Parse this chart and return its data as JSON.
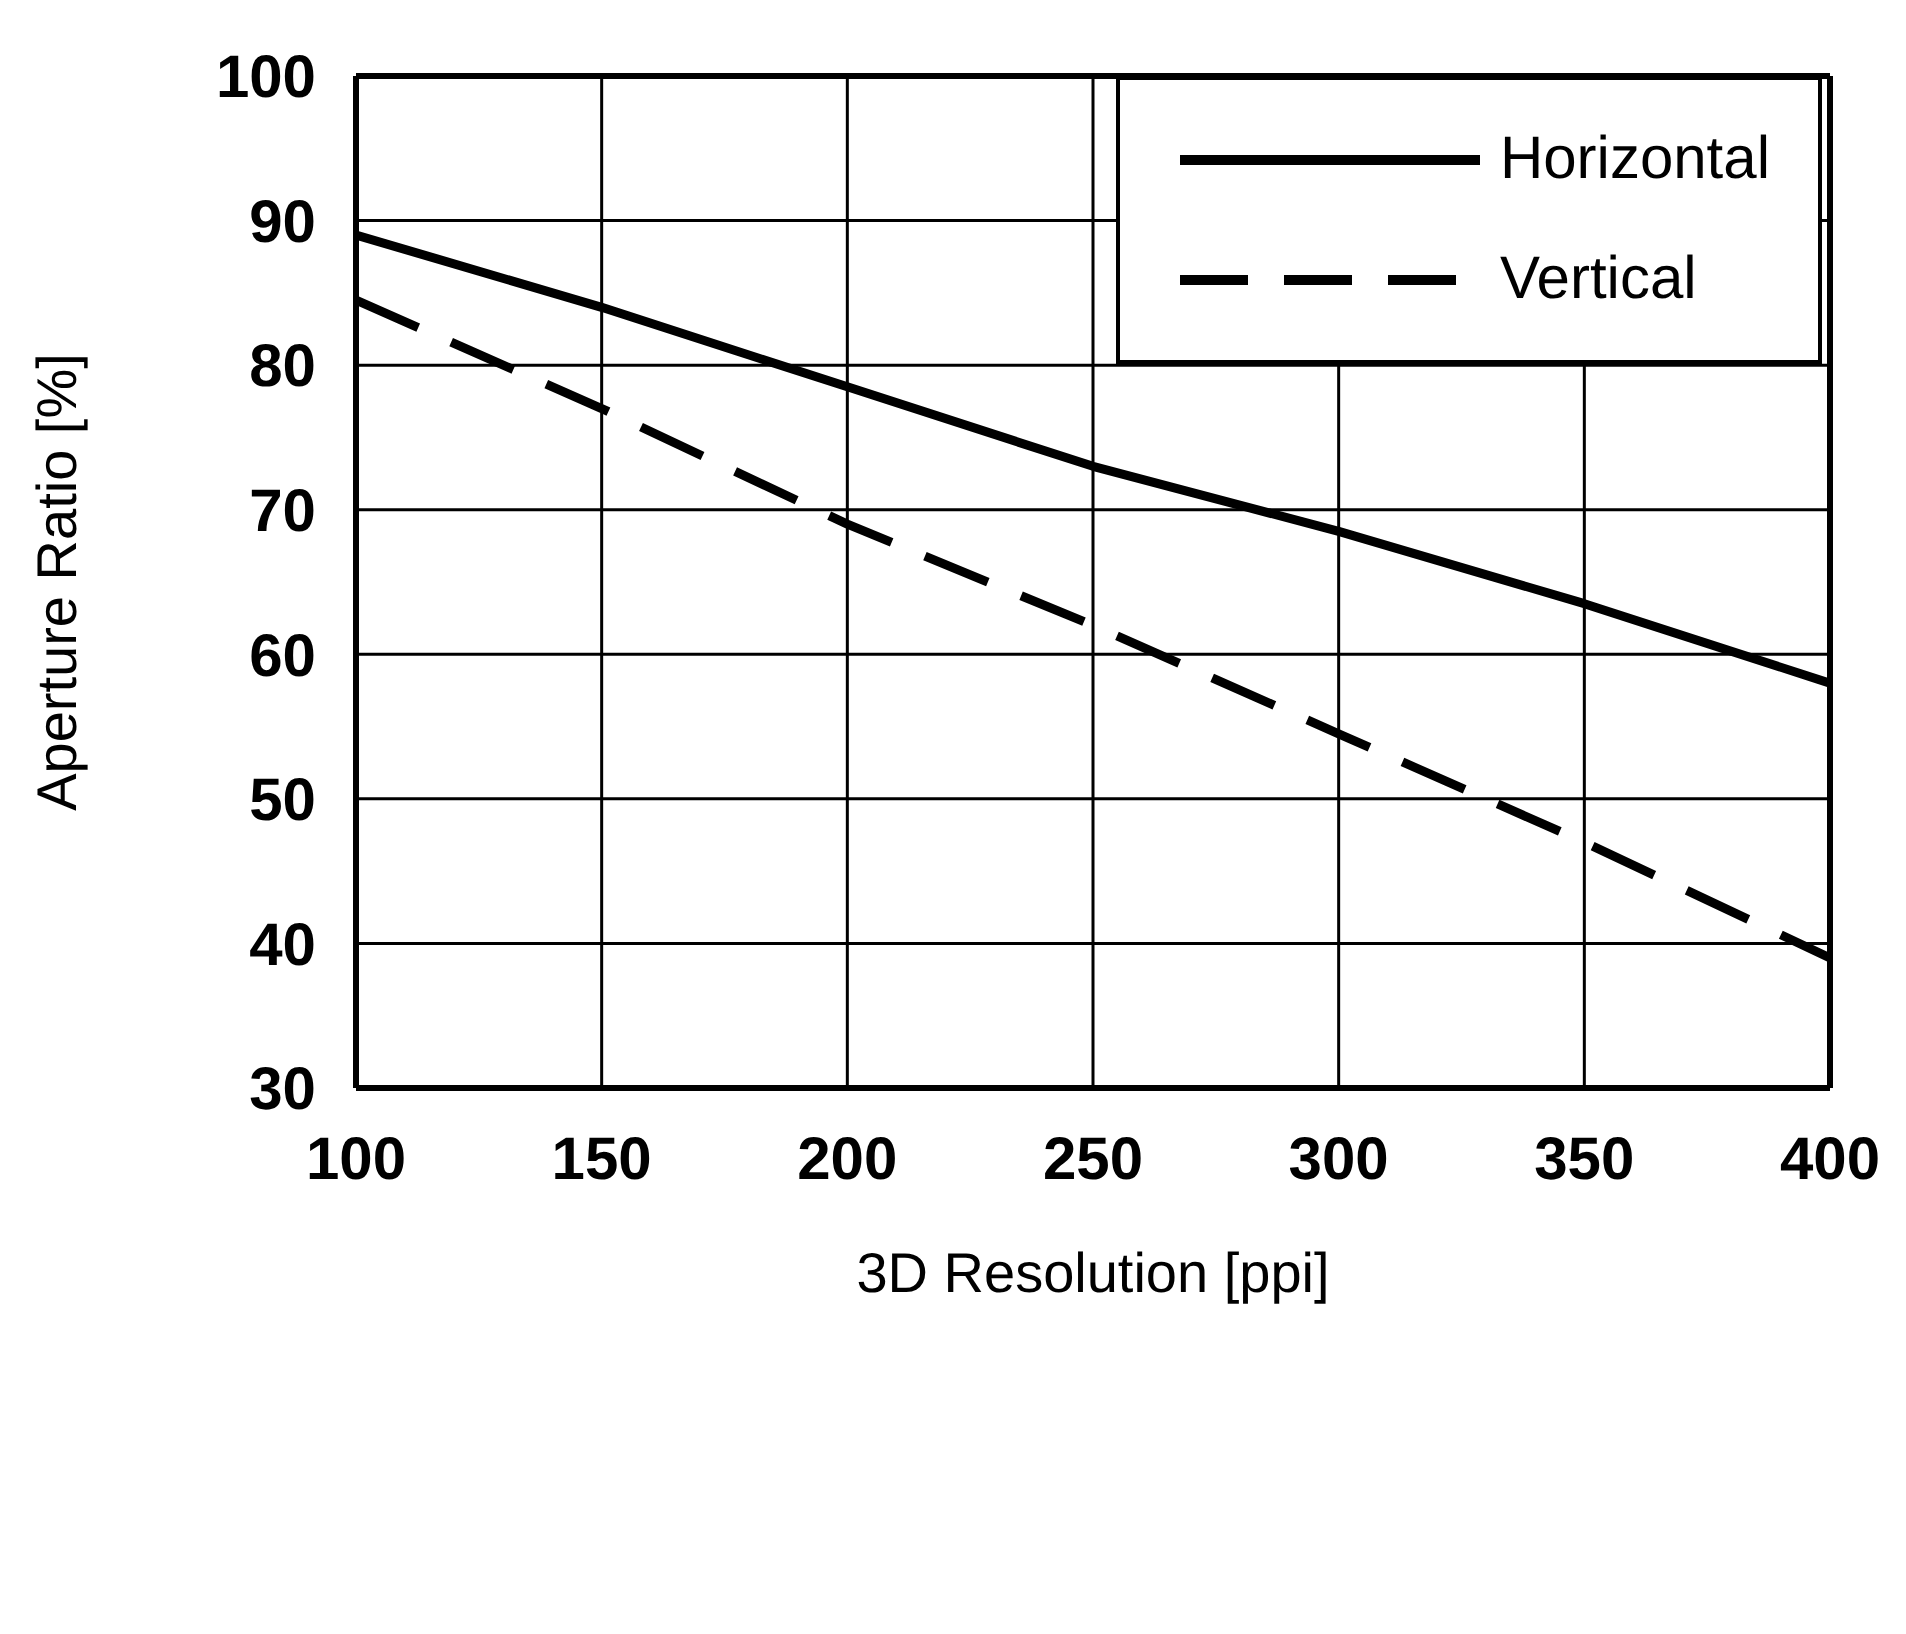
{
  "chart_data": {
    "type": "line",
    "xlabel": "3D Resolution [ppi]",
    "ylabel": "Aperture Ratio [%]",
    "x": [
      100,
      150,
      200,
      250,
      300,
      350,
      400
    ],
    "series": [
      {
        "name": "Horizontal",
        "color": "#000000",
        "line_style": "solid",
        "values": [
          89,
          84,
          78.5,
          73,
          68.5,
          63.5,
          58
        ]
      },
      {
        "name": "Vertical",
        "color": "#000000",
        "line_style": "dashed",
        "values": [
          84.5,
          77,
          69,
          62,
          54.5,
          47,
          39
        ]
      }
    ],
    "xlim": [
      100,
      400
    ],
    "xticks": [
      100,
      150,
      200,
      250,
      300,
      350,
      400
    ],
    "ylim": [
      30,
      100
    ],
    "yticks": [
      30,
      40,
      50,
      60,
      70,
      80,
      90,
      100
    ],
    "grid": true,
    "legend": "top right",
    "marker": "none"
  }
}
